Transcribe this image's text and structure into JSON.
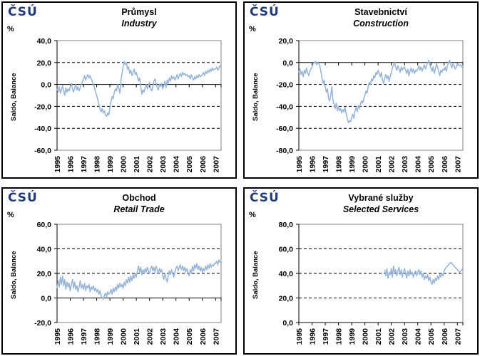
{
  "logo": {
    "text": "ČSÚ"
  },
  "colors": {
    "line": "#95B3D7",
    "logo_navy": "#1F3A7D",
    "plot_border": "#808080",
    "grid": "#000000",
    "panel_border": "#000000"
  },
  "chart_data": [
    {
      "id": "industry",
      "type": "line",
      "title": "Průmysl",
      "subtitle": "Industry",
      "unit": "%",
      "ylabel": "Saldo, Balance",
      "ylim": [
        -60,
        40
      ],
      "ystep": 20,
      "yticks": [
        "40,0",
        "20,0",
        "0,0",
        "-20,0",
        "-40,0",
        "-60,0"
      ],
      "years": [
        "1995",
        "1996",
        "1997",
        "1998",
        "1999",
        "2000",
        "2001",
        "2002",
        "2003",
        "2004",
        "2005",
        "2006",
        "2007"
      ],
      "x_range": [
        1995.0,
        2007.5
      ],
      "frequency": "monthly",
      "n_points": 150,
      "x_start_index": 0,
      "grid": "dashed",
      "legend": "none",
      "values": [
        -4,
        -7,
        -2,
        -8,
        -5,
        -1,
        -6,
        -10,
        -3,
        -7,
        -4,
        -6,
        -2,
        1,
        -4,
        -7,
        -3,
        0,
        -5,
        -2,
        -6,
        -3,
        0,
        2,
        5,
        8,
        4,
        7,
        9,
        6,
        8,
        5,
        3,
        0,
        -3,
        -7,
        -10,
        -14,
        -18,
        -22,
        -25,
        -22,
        -26,
        -24,
        -28,
        -29,
        -26,
        -28,
        -21,
        -16,
        -11,
        -13,
        -7,
        -4,
        -6,
        0,
        -3,
        -8,
        3,
        10,
        16,
        21,
        18,
        20,
        14,
        16,
        10,
        13,
        8,
        11,
        14,
        9,
        11,
        7,
        3,
        6,
        -2,
        -9,
        -5,
        -7,
        -3,
        0,
        -4,
        -1,
        2,
        -4,
        -6,
        -2,
        3,
        5,
        1,
        -3,
        -5,
        0,
        -2,
        1,
        -4,
        -1,
        3,
        -3,
        4,
        1,
        6,
        3,
        8,
        5,
        7,
        4,
        6,
        9,
        5,
        8,
        10,
        7,
        11,
        9,
        10,
        8,
        9,
        7,
        8,
        5,
        9,
        6,
        4,
        7,
        5,
        8,
        6,
        9,
        7,
        8,
        9,
        11,
        8,
        12,
        10,
        13,
        11,
        14,
        12,
        15,
        13,
        14,
        14,
        16,
        13,
        15,
        17,
        16
      ]
    },
    {
      "id": "construction",
      "type": "line",
      "title": "Stavebnictví",
      "subtitle": "Construction",
      "unit": "%",
      "ylabel": "Saldo, Balance",
      "ylim": [
        -80,
        20
      ],
      "ystep": 20,
      "yticks": [
        "20,0",
        "0,0",
        "-20,0",
        "-40,0",
        "-60,0",
        "-80,0"
      ],
      "years": [
        "1995",
        "1996",
        "1997",
        "1998",
        "1999",
        "2000",
        "2001",
        "2002",
        "2003",
        "2004",
        "2005",
        "2006",
        "2007"
      ],
      "x_range": [
        1995.0,
        2007.5
      ],
      "frequency": "monthly",
      "n_points": 150,
      "x_start_index": 0,
      "grid": "dashed",
      "legend": "none",
      "values": [
        -9,
        -6,
        -11,
        -8,
        -13,
        -7,
        -10,
        -5,
        -9,
        -12,
        -8,
        -6,
        -4,
        -1,
        0,
        1,
        -2,
        0,
        -1,
        -3,
        -8,
        -14,
        -19,
        -16,
        -22,
        -27,
        -24,
        -33,
        -35,
        -30,
        -22,
        -35,
        -38,
        -42,
        -37,
        -44,
        -40,
        -44,
        -42,
        -46,
        -43,
        -45,
        -41,
        -47,
        -51,
        -55,
        -53,
        -54,
        -50,
        -47,
        -51,
        -44,
        -41,
        -45,
        -39,
        -42,
        -38,
        -35,
        -37,
        -33,
        -30,
        -26,
        -28,
        -22,
        -18,
        -20,
        -15,
        -17,
        -12,
        -14,
        -9,
        -11,
        -7,
        -10,
        -13,
        -9,
        -16,
        -19,
        -14,
        -11,
        -15,
        -12,
        -17,
        -13,
        -9,
        -5,
        -2,
        0,
        -4,
        -7,
        -3,
        -6,
        -9,
        -4,
        -7,
        -5,
        -4,
        -7,
        -10,
        -6,
        -12,
        -8,
        -5,
        -9,
        -6,
        -10,
        -7,
        -8,
        -6,
        -3,
        -7,
        -4,
        -8,
        -5,
        -2,
        -6,
        -3,
        0,
        2,
        -2,
        -5,
        -8,
        -4,
        -10,
        -6,
        -1,
        -4,
        -8,
        -12,
        -7,
        -9,
        -6,
        -7,
        -4,
        -8,
        -3,
        0,
        2,
        -2,
        -5,
        -1,
        -3,
        -6,
        -4,
        -1,
        -2,
        -3,
        -2,
        -4,
        -5
      ]
    },
    {
      "id": "retail-trade",
      "type": "line",
      "title": "Obchod",
      "subtitle": "Retail Trade",
      "unit": "%",
      "ylabel": "Saldo, Balance",
      "ylim": [
        -20,
        60
      ],
      "ystep": 20,
      "yticks": [
        "60,0",
        "40,0",
        "20,0",
        "0,0",
        "-20,0"
      ],
      "years": [
        "1995",
        "1996",
        "1997",
        "1998",
        "1999",
        "2000",
        "2001",
        "2002",
        "2003",
        "2004",
        "2005",
        "2006",
        "2007"
      ],
      "x_range": [
        1995.0,
        2007.5
      ],
      "frequency": "monthly",
      "n_points": 150,
      "x_start_index": 0,
      "grid": "dashed",
      "legend": "none",
      "values": [
        8,
        14,
        9,
        17,
        11,
        18,
        10,
        15,
        7,
        13,
        9,
        12,
        6,
        11,
        15,
        8,
        13,
        7,
        10,
        5,
        9,
        14,
        8,
        11,
        7,
        12,
        6,
        10,
        8,
        11,
        5,
        9,
        7,
        10,
        6,
        8,
        5,
        7,
        3,
        6,
        2,
        0,
        -1,
        2,
        4,
        1,
        5,
        3,
        4,
        7,
        3,
        8,
        5,
        9,
        6,
        11,
        8,
        12,
        9,
        11,
        8,
        13,
        10,
        15,
        12,
        17,
        13,
        18,
        14,
        19,
        16,
        20,
        17,
        22,
        26,
        21,
        25,
        19,
        23,
        20,
        24,
        21,
        25,
        22,
        20,
        24,
        26,
        22,
        25,
        21,
        26,
        23,
        20,
        24,
        21,
        23,
        18,
        15,
        20,
        16,
        13,
        18,
        22,
        19,
        23,
        20,
        17,
        21,
        24,
        26,
        22,
        25,
        27,
        23,
        26,
        22,
        25,
        21,
        24,
        20,
        18,
        23,
        20,
        26,
        22,
        27,
        24,
        28,
        23,
        26,
        22,
        25,
        21,
        24,
        22,
        26,
        23,
        27,
        24,
        28,
        25,
        27,
        26,
        28,
        28,
        30,
        27,
        31,
        29,
        30
      ]
    },
    {
      "id": "selected-services",
      "type": "line",
      "title": "Vybrané služby",
      "subtitle": "Selected Services",
      "unit": "%",
      "ylabel": "Saldo, Balance",
      "ylim": [
        0,
        80
      ],
      "ystep": 20,
      "yticks": [
        "80,0",
        "60,0",
        "40,0",
        "20,0",
        "0,0"
      ],
      "years": [
        "1995",
        "1996",
        "1997",
        "1998",
        "1999",
        "2000",
        "2001",
        "2002",
        "2003",
        "2004",
        "2005",
        "2006",
        "2007"
      ],
      "x_range": [
        1995.0,
        2007.5
      ],
      "frequency": "monthly",
      "n_points": 150,
      "x_start_index": 78,
      "grid": "dashed",
      "legend": "none",
      "values": [
        43,
        38,
        44,
        36,
        41,
        39,
        44,
        37,
        46,
        40,
        43,
        38,
        42,
        45,
        39,
        43,
        37,
        41,
        44,
        40,
        36,
        42,
        38,
        43,
        39,
        41,
        37,
        40,
        42,
        38,
        41,
        43,
        39,
        42,
        37,
        40,
        35,
        38,
        36,
        39,
        34,
        37,
        33,
        31,
        35,
        32,
        36,
        34,
        38,
        35,
        39,
        37,
        40,
        38,
        42,
        44,
        45,
        46,
        47,
        48,
        49,
        48,
        47,
        46,
        45,
        44,
        43,
        42,
        41,
        42,
        43,
        44
      ]
    }
  ]
}
